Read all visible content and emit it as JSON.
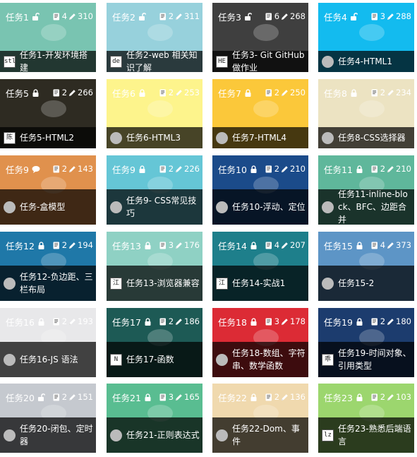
{
  "cards": [
    {
      "name": "任务1",
      "status": "unlock",
      "docs": "4",
      "edits": "310",
      "title": "任务1-开发环境搭建",
      "avatar": "stl",
      "bg": "#79c4b1"
    },
    {
      "name": "任务2",
      "status": "unlock",
      "docs": "2",
      "edits": "311",
      "title": "任务2-web 相关知识了解",
      "avatar": "de",
      "bg": "#97d1dc"
    },
    {
      "name": "任务3",
      "status": "unlock",
      "docs": "6",
      "edits": "268",
      "title": "任务3- Git GitHub 做作业",
      "avatar": "HE",
      "bg": "#3f3f3f"
    },
    {
      "name": "任务4",
      "status": "unlock",
      "docs": "3",
      "edits": "288",
      "title": "任务4-HTML1",
      "avatar": "",
      "bg": "#13bbef"
    },
    {
      "name": "任务5",
      "status": "lock",
      "docs": "2",
      "edits": "266",
      "title": "任务5-HTML2",
      "avatar": "陈",
      "bg": "#2e2b22"
    },
    {
      "name": "任务6",
      "status": "lock",
      "docs": "2",
      "edits": "253",
      "title": "任务6-HTML3",
      "avatar": "",
      "bg": "#fdf48c"
    },
    {
      "name": "任务7",
      "status": "lock",
      "docs": "2",
      "edits": "250",
      "title": "任务7-HTML4",
      "avatar": "",
      "bg": "#fbc83a"
    },
    {
      "name": "任务8",
      "status": "lock",
      "docs": "2",
      "edits": "234",
      "title": "任务8-CSS选择器",
      "avatar": "",
      "bg": "#ece3c2"
    },
    {
      "name": "任务9",
      "status": "chat",
      "docs": "2",
      "edits": "143",
      "title": "任务-盒模型",
      "avatar": "",
      "bg": "#e0914d"
    },
    {
      "name": "任务9",
      "status": "lock",
      "docs": "2",
      "edits": "226",
      "title": "任务9- CSS常见技巧",
      "avatar": "",
      "bg": "#65c6d6"
    },
    {
      "name": "任务10",
      "status": "lock",
      "docs": "2",
      "edits": "210",
      "title": "任务10-浮动、定位",
      "avatar": "",
      "bg": "#1b4b8a"
    },
    {
      "name": "任务11",
      "status": "lock",
      "docs": "2",
      "edits": "210",
      "title": "任务11-inline-block、BFC、边距合并",
      "avatar": "",
      "bg": "#5fb79b"
    },
    {
      "name": "任务12",
      "status": "lock",
      "docs": "2",
      "edits": "194",
      "title": "任务12-负边距、三栏布局",
      "avatar": "",
      "bg": "#1f78a8"
    },
    {
      "name": "任务13",
      "status": "lock",
      "docs": "3",
      "edits": "176",
      "title": "任务13-浏览器兼容",
      "avatar": "江",
      "bg": "#8fd1c4"
    },
    {
      "name": "任务14",
      "status": "lock",
      "docs": "4",
      "edits": "207",
      "title": "任务14-实战1",
      "avatar": "江",
      "bg": "#1e7f8b"
    },
    {
      "name": "任务15",
      "status": "lock",
      "docs": "4",
      "edits": "373",
      "title": "任务15-2",
      "avatar": "",
      "bg": "#5d95c6"
    },
    {
      "name": "任务16",
      "status": "lock",
      "docs": "2",
      "edits": "193",
      "title": "任务16-JS 语法",
      "avatar": "",
      "bg": "#e8e8ea"
    },
    {
      "name": "任务17",
      "status": "lock",
      "docs": "2",
      "edits": "186",
      "title": "任务17-函数",
      "avatar": "N",
      "bg": "#1d5a55"
    },
    {
      "name": "任务18",
      "status": "lock",
      "docs": "3",
      "edits": "178",
      "title": "任务18-数组、字符串、数学函数",
      "avatar": "",
      "bg": "#dc2b35"
    },
    {
      "name": "任务19",
      "status": "lock",
      "docs": "2",
      "edits": "180",
      "title": "任务19-时间对象、引用类型",
      "avatar": "乖",
      "bg": "#1c3c6e"
    },
    {
      "name": "任务20",
      "status": "unlock",
      "docs": "2",
      "edits": "151",
      "title": "任务20-闭包、定时器",
      "avatar": "",
      "bg": "#c5c9cf"
    },
    {
      "name": "任务21",
      "status": "lock",
      "docs": "3",
      "edits": "165",
      "title": "任务21-正则表达式",
      "avatar": "",
      "bg": "#59bd91"
    },
    {
      "name": "任务22",
      "status": "lock",
      "docs": "2",
      "edits": "136",
      "title": "任务22-Dom、事件",
      "avatar": "",
      "bg": "#f0d9ae"
    },
    {
      "name": "任务23",
      "status": "lock",
      "docs": "2",
      "edits": "103",
      "title": "任务23-熟悉后端语言",
      "avatar": "lz",
      "bg": "#9cd66e"
    }
  ]
}
